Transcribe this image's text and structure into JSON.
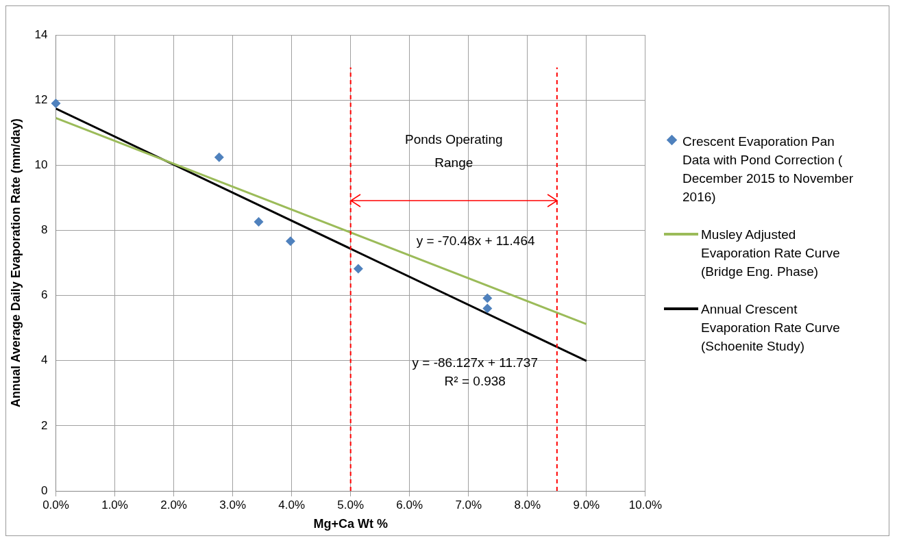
{
  "chart_data": {
    "type": "scatter",
    "xlabel": "Mg+Ca Wt %",
    "ylabel": "Annual Average Daily Evaporation Rate (mm/day)",
    "xlim": [
      0,
      0.1
    ],
    "ylim": [
      0,
      14
    ],
    "xticks": [
      {
        "value": 0,
        "label": "0.0%"
      },
      {
        "value": 0.01,
        "label": "1.0%"
      },
      {
        "value": 0.02,
        "label": "2.0%"
      },
      {
        "value": 0.03,
        "label": "3.0%"
      },
      {
        "value": 0.04,
        "label": "4.0%"
      },
      {
        "value": 0.05,
        "label": "5.0%"
      },
      {
        "value": 0.06,
        "label": "6.0%"
      },
      {
        "value": 0.07,
        "label": "7.0%"
      },
      {
        "value": 0.08,
        "label": "8.0%"
      },
      {
        "value": 0.09,
        "label": "9.0%"
      },
      {
        "value": 0.1,
        "label": "10.0%"
      }
    ],
    "yticks": [
      0,
      2,
      4,
      6,
      8,
      10,
      12,
      14
    ],
    "grid": true,
    "legend": "right",
    "series": [
      {
        "name": "Crescent Evaporation Pan Data with Pond Correction ( December 2015 to November 2016)",
        "type": "scatter",
        "marker": "diamond",
        "color": "#4f81bd",
        "x": [
          0,
          0.0277,
          0.0344,
          0.0398,
          0.0513,
          0.0732,
          0.0732
        ],
        "values": [
          11.9,
          10.24,
          8.26,
          7.67,
          6.82,
          5.92,
          5.6
        ]
      },
      {
        "name": "Musley Adjusted Evaporation Rate Curve (Bridge Eng. Phase)",
        "type": "line",
        "marker": "none",
        "color": "#9bbb59",
        "x": [
          0,
          0.09
        ],
        "values": [
          11.45,
          5.12
        ]
      },
      {
        "name": "Annual Crescent Evaporation Rate Curve (Schoenite Study)",
        "type": "line",
        "marker": "none",
        "color": "#000000",
        "x": [
          0,
          0.09
        ],
        "values": [
          11.74,
          3.99
        ]
      }
    ],
    "ref_lines": [
      {
        "axis": "x",
        "value": 0.05,
        "color": "#ff0000",
        "line_style": "dashed"
      },
      {
        "axis": "x",
        "value": 0.085,
        "color": "#ff0000",
        "line_style": "dashed"
      }
    ],
    "annotations": [
      "Ponds Operating Range",
      "y = -70.48x + 11.464",
      "y = -86.127x + 11.737",
      "R² = 0.938"
    ]
  }
}
